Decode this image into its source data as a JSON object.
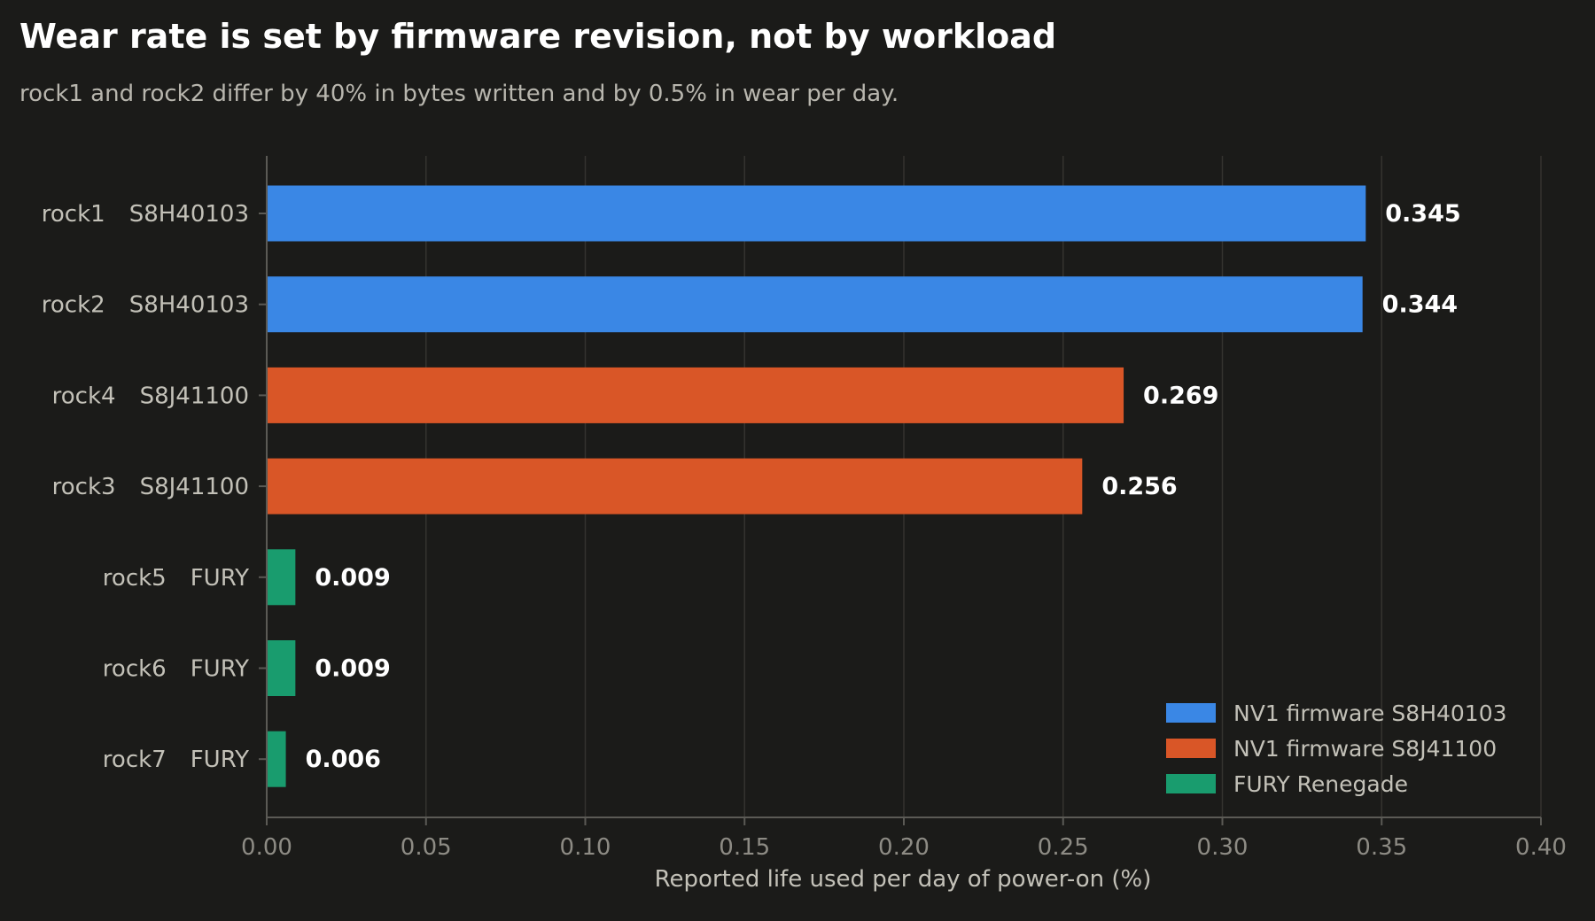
{
  "chart_data": {
    "type": "bar",
    "orientation": "horizontal",
    "title": "Wear rate is set by firmware revision, not by workload",
    "subtitle": "rock1 and rock2 differ by 40% in bytes written and by 0.5% in wear per day.",
    "xlabel": "Reported life used per day of power-on (%)",
    "ylabel": "",
    "xlim": [
      0,
      0.4
    ],
    "x_ticks": [
      "0.00",
      "0.05",
      "0.10",
      "0.15",
      "0.20",
      "0.25",
      "0.30",
      "0.35",
      "0.40"
    ],
    "x_tick_values": [
      0,
      0.05,
      0.1,
      0.15,
      0.2,
      0.25,
      0.3,
      0.35,
      0.4
    ],
    "grid": "vertical",
    "legend_position": "bottom-right",
    "groups": [
      {
        "name": "NV1 firmware S8H40103",
        "color": "#3a87e5"
      },
      {
        "name": "NV1 firmware S8J41100",
        "color": "#d95627"
      },
      {
        "name": "FURY Renegade",
        "color": "#199c6e"
      }
    ],
    "bars": [
      {
        "host": "rock1",
        "drive": "S8H40103",
        "value": 0.345,
        "label": "0.345",
        "group": 0
      },
      {
        "host": "rock2",
        "drive": "S8H40103",
        "value": 0.344,
        "label": "0.344",
        "group": 0
      },
      {
        "host": "rock4",
        "drive": "S8J41100",
        "value": 0.269,
        "label": "0.269",
        "group": 1
      },
      {
        "host": "rock3",
        "drive": "S8J41100",
        "value": 0.256,
        "label": "0.256",
        "group": 1
      },
      {
        "host": "rock5",
        "drive": "FURY",
        "value": 0.009,
        "label": "0.009",
        "group": 2
      },
      {
        "host": "rock6",
        "drive": "FURY",
        "value": 0.009,
        "label": "0.009",
        "group": 2
      },
      {
        "host": "rock7",
        "drive": "FURY",
        "value": 0.006,
        "label": "0.006",
        "group": 2
      }
    ]
  }
}
